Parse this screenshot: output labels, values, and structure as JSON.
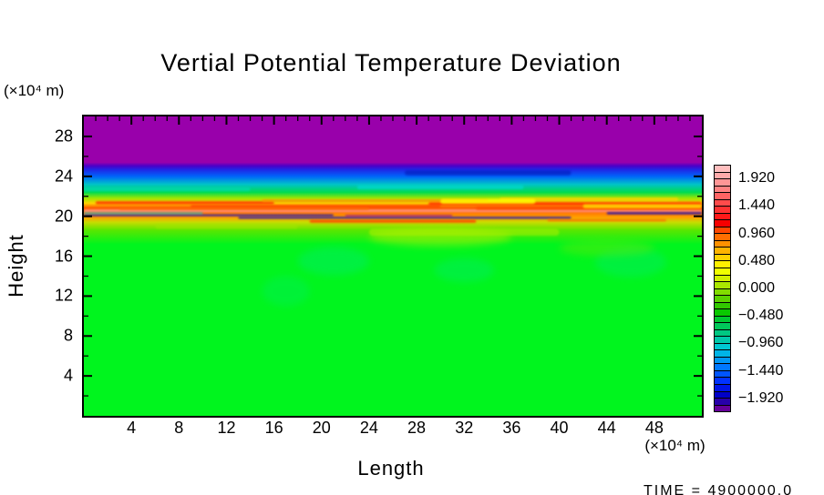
{
  "title": "Vertial Potential Temperature Deviation",
  "time_label": "TIME = 4900000.0",
  "axes": {
    "x_label": "Length",
    "y_label": "Height",
    "x_unit": "(×10⁴ m)",
    "y_unit": "(×10⁴ m)",
    "x_ticks": [
      4,
      8,
      12,
      16,
      20,
      24,
      28,
      32,
      36,
      40,
      44,
      48
    ],
    "y_ticks": [
      28,
      24,
      20,
      16,
      12,
      8,
      4
    ],
    "x_range": [
      0,
      52
    ],
    "y_range": [
      0,
      30
    ]
  },
  "colorbar": {
    "tick_labels": [
      "1.920",
      "1.440",
      "0.960",
      "0.480",
      "0.000",
      "−0.480",
      "−0.960",
      "−1.440",
      "−1.920"
    ],
    "tick_values": [
      1.92,
      1.44,
      0.96,
      0.48,
      0.0,
      -0.48,
      -0.96,
      -1.44,
      -1.92
    ],
    "value_min": -2.16,
    "value_max": 2.16,
    "cell_step": 0.12,
    "cell_colors": [
      "#ffbebe",
      "#ffaaaa",
      "#ff9696",
      "#ff8282",
      "#ff6464",
      "#ff4b4b",
      "#ff3232",
      "#ff1919",
      "#f50000",
      "#ff4600",
      "#ff6e00",
      "#ff9100",
      "#ffb400",
      "#ffd200",
      "#fff000",
      "#f0ff00",
      "#d2f000",
      "#aae600",
      "#82dc00",
      "#5ad200",
      "#32c800",
      "#0ac800",
      "#00c832",
      "#00c85a",
      "#00c882",
      "#00c8aa",
      "#00c8d2",
      "#00b4e6",
      "#0096f5",
      "#0078ff",
      "#0055ff",
      "#0032ff",
      "#0014e6",
      "#0000c8",
      "#2800aa",
      "#660099"
    ]
  },
  "chart_data": {
    "type": "heatmap",
    "title": "Vertial Potential Temperature Deviation",
    "xlabel": "Length (×10⁴ m)",
    "ylabel": "Height (×10⁴ m)",
    "x_range": [
      0,
      52
    ],
    "y_range": [
      0,
      30
    ],
    "x_ticks": [
      4,
      8,
      12,
      16,
      20,
      24,
      28,
      32,
      36,
      40,
      44,
      48
    ],
    "y_ticks": [
      4,
      8,
      12,
      16,
      20,
      24,
      28
    ],
    "value_scale": {
      "min": -2.16,
      "max": 2.16,
      "labeled_levels": [
        1.92,
        1.44,
        0.96,
        0.48,
        0.0,
        -0.48,
        -0.96,
        -1.44,
        -1.92
      ]
    },
    "legend_position": "right",
    "description": "Stratified 2-D potential temperature deviation field: uniform near-zero (bright green) below height 17; turbulent braided layer of strong positive deviation streaks (yellow/orange/red/pink, +0.5 to +1.9) between heights 19.5 and 21.8 with thin embedded negative (dark blue/purple) filaments near height 20; negative transition band (cyan to blue, -0.5 to -1.9) from heights 22.5 to 25; uniform strongly negative region (purple, below -1.92) above height 25.4. Time stamp 4900000.0 s.",
    "bands": [
      {
        "h": 30.0,
        "color": "#9900ab",
        "approx_value": -2.1
      },
      {
        "h": 25.4,
        "color": "#9900ab",
        "approx_value": -2.1
      },
      {
        "h": 25.05,
        "color": "#4b00c8",
        "approx_value": -2.0
      },
      {
        "h": 24.65,
        "color": "#1e28e6",
        "approx_value": -1.6
      },
      {
        "h": 24.0,
        "color": "#0064fa",
        "approx_value": -1.2
      },
      {
        "h": 23.2,
        "color": "#00c3c8",
        "approx_value": -0.7
      },
      {
        "h": 22.4,
        "color": "#00dc50",
        "approx_value": -0.2
      },
      {
        "h": 21.8,
        "color": "#a0e600",
        "approx_value": 0.3
      },
      {
        "h": 21.3,
        "color": "#ffd200",
        "approx_value": 0.8
      },
      {
        "h": 20.85,
        "color": "#ff5a00",
        "approx_value": 1.4
      },
      {
        "h": 20.35,
        "color": "#ff7800",
        "approx_value": 1.3
      },
      {
        "h": 19.9,
        "color": "#ffa000",
        "approx_value": 1.0
      },
      {
        "h": 19.4,
        "color": "#c8dc00",
        "approx_value": 0.5
      },
      {
        "h": 18.6,
        "color": "#5ae600",
        "approx_value": 0.2
      },
      {
        "h": 17.2,
        "color": "#00f51e",
        "approx_value": 0.0
      },
      {
        "h": 0.0,
        "color": "#00f51e",
        "approx_value": 0.0
      }
    ],
    "streaks": [
      {
        "x1": 0,
        "x2": 52,
        "h": 20.55,
        "t": 0.22,
        "color": "#ff9696",
        "opacity": 0.95
      },
      {
        "x1": 0,
        "x2": 21,
        "h": 20.1,
        "t": 0.16,
        "color": "#0000cd",
        "opacity": 0.9
      },
      {
        "x1": 13,
        "x2": 41,
        "h": 19.85,
        "t": 0.18,
        "color": "#0000cd",
        "opacity": 0.9
      },
      {
        "x1": 44,
        "x2": 52,
        "h": 20.3,
        "t": 0.2,
        "color": "#0000cd",
        "opacity": 0.85
      },
      {
        "x1": 22,
        "x2": 31,
        "h": 20.05,
        "t": 0.13,
        "color": "#8800aa",
        "opacity": 0.9
      },
      {
        "x1": 1,
        "x2": 16,
        "h": 21.35,
        "t": 0.3,
        "color": "#ff3200",
        "opacity": 0.9
      },
      {
        "x1": 9,
        "x2": 30,
        "h": 21.0,
        "t": 0.26,
        "color": "#ff4600",
        "opacity": 0.9
      },
      {
        "x1": 29,
        "x2": 52,
        "h": 21.25,
        "t": 0.38,
        "color": "#ff3c00",
        "opacity": 0.95
      },
      {
        "x1": 33,
        "x2": 52,
        "h": 20.8,
        "t": 0.3,
        "color": "#ff5000",
        "opacity": 0.9
      },
      {
        "x1": 3,
        "x2": 24,
        "h": 20.75,
        "t": 0.2,
        "color": "#ff6e00",
        "opacity": 0.85
      },
      {
        "x1": 15,
        "x2": 34,
        "h": 21.55,
        "t": 0.24,
        "color": "#ff8c00",
        "opacity": 0.85
      },
      {
        "x1": 35,
        "x2": 50,
        "h": 21.7,
        "t": 0.3,
        "color": "#ffd200",
        "opacity": 0.9
      },
      {
        "x1": 30,
        "x2": 38,
        "h": 21.5,
        "t": 0.5,
        "color": "#ffff00",
        "opacity": 0.8
      },
      {
        "x1": 42,
        "x2": 52,
        "h": 21.0,
        "t": 0.4,
        "color": "#ffe100",
        "opacity": 0.8
      },
      {
        "x1": 19,
        "x2": 33,
        "h": 19.5,
        "t": 0.3,
        "color": "#ff4600",
        "opacity": 0.9
      },
      {
        "x1": 39,
        "x2": 49,
        "h": 19.6,
        "t": 0.2,
        "color": "#ff6400",
        "opacity": 0.85
      },
      {
        "x1": 0,
        "x2": 10,
        "h": 20.3,
        "t": 0.15,
        "color": "#00c8dc",
        "opacity": 0.8
      },
      {
        "x1": 23,
        "x2": 37,
        "h": 22.9,
        "t": 0.4,
        "color": "#00dcdc",
        "opacity": 0.6
      },
      {
        "x1": 0,
        "x2": 14,
        "h": 22.7,
        "t": 0.35,
        "color": "#00dcc8",
        "opacity": 0.5
      },
      {
        "x1": 27,
        "x2": 41,
        "h": 24.35,
        "t": 0.5,
        "color": "#0014b4",
        "opacity": 0.55
      },
      {
        "x1": 6,
        "x2": 18,
        "h": 19.0,
        "t": 0.5,
        "color": "#a0e600",
        "opacity": 0.5
      },
      {
        "x1": 24,
        "x2": 40,
        "h": 18.4,
        "t": 0.7,
        "color": "#b4f000",
        "opacity": 0.5
      }
    ],
    "blobs": [
      {
        "cx": 21,
        "cy": 15.5,
        "rx": 3.0,
        "ry": 1.4,
        "color": "#00e691",
        "opacity": 0.3
      },
      {
        "cx": 32,
        "cy": 14.6,
        "rx": 2.5,
        "ry": 1.2,
        "color": "#00e691",
        "opacity": 0.28
      },
      {
        "cx": 46,
        "cy": 15.4,
        "rx": 3.0,
        "ry": 1.5,
        "color": "#00e691",
        "opacity": 0.28
      },
      {
        "cx": 17,
        "cy": 12.5,
        "rx": 2.0,
        "ry": 1.5,
        "color": "#00e691",
        "opacity": 0.22
      },
      {
        "cx": 30,
        "cy": 17.9,
        "rx": 6.0,
        "ry": 0.9,
        "color": "#c8f000",
        "opacity": 0.45
      },
      {
        "cx": 44,
        "cy": 16.8,
        "rx": 4.0,
        "ry": 0.8,
        "color": "#7de600",
        "opacity": 0.35
      }
    ]
  }
}
